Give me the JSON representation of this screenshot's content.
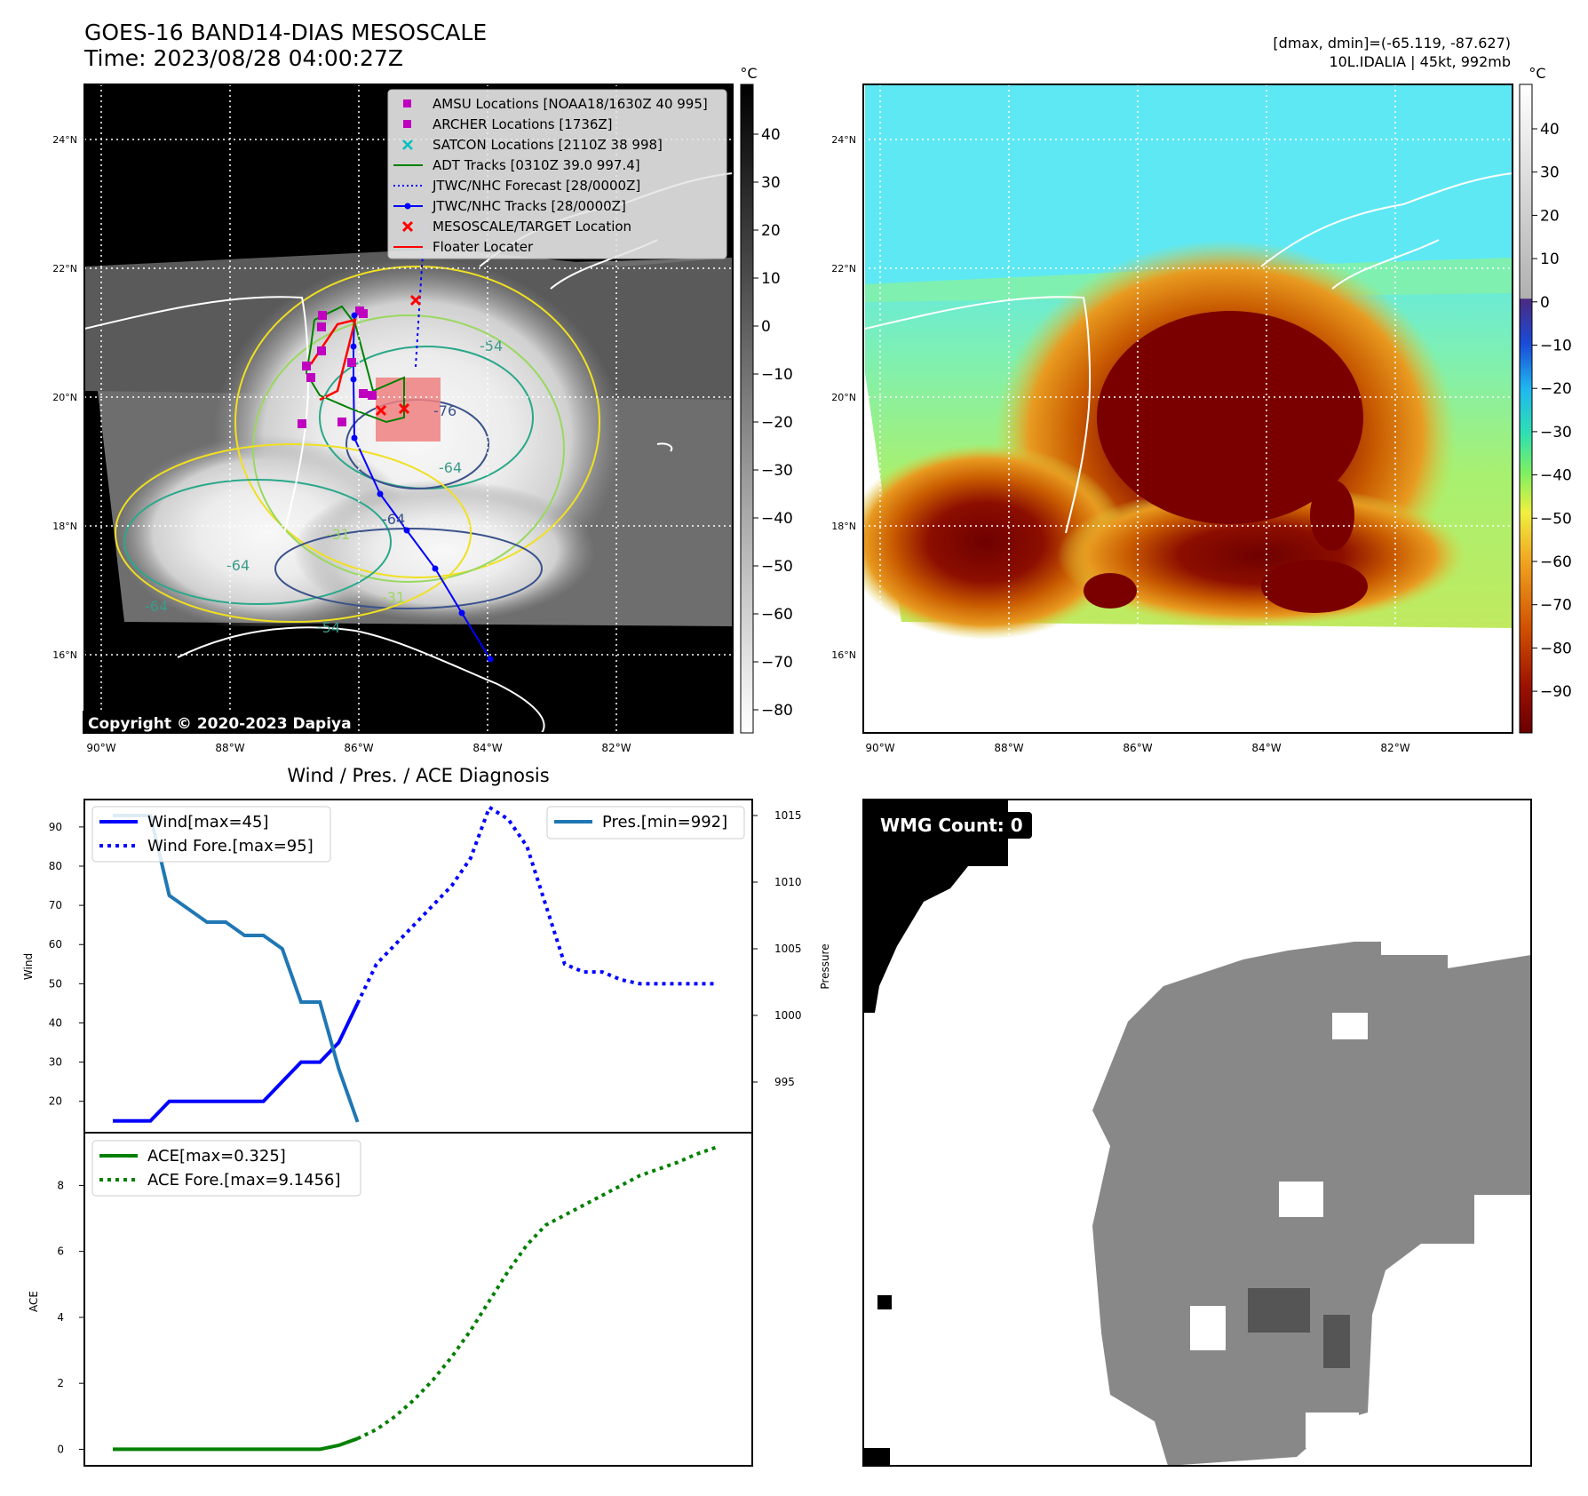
{
  "header": {
    "title_line1": "GOES-16 BAND14-DIAS MESOSCALE",
    "title_line2": "Time: 2023/08/28 04:00:27Z",
    "dmax_dmin": "[dmax, dmin]=(-65.119, -87.627)",
    "storm_info": "10L.IDALIA | 45kt, 992mb"
  },
  "map": {
    "lat_labels": [
      "24°N",
      "22°N",
      "20°N",
      "18°N",
      "16°N"
    ],
    "lon_labels": [
      "90°W",
      "88°W",
      "86°W",
      "84°W",
      "82°W"
    ],
    "copyright": "Copyright © 2020-2023 Dapiya",
    "contour_labels": [
      "-54",
      "-64",
      "-76",
      "-64",
      "-31",
      "-64",
      "-31",
      "-64",
      "-54"
    ],
    "legend": [
      {
        "label": "AMSU Locations [NOAA18/1630Z 40 995]",
        "color": "#bf00bf"
      },
      {
        "label": "ARCHER Locations [1736Z]",
        "color": "#bf00bf"
      },
      {
        "label": "SATCON Locations [2110Z 38 998]",
        "color": "#00bfbf"
      },
      {
        "label": "ADT Tracks [0310Z 39.0 997.4]",
        "color": "#008000"
      },
      {
        "label": "JTWC/NHC Forecast [28/0000Z]",
        "color": "#0000ff"
      },
      {
        "label": "JTWC/NHC Tracks [28/0000Z]",
        "color": "#0000ff"
      },
      {
        "label": "MESOSCALE/TARGET Location",
        "color": "#ff0000"
      },
      {
        "label": "Floater Locater",
        "color": "#ff0000"
      }
    ]
  },
  "colorbar_gray": {
    "unit": "°C",
    "ticks": [
      "40",
      "30",
      "20",
      "10",
      "0",
      "−10",
      "−20",
      "−30",
      "−40",
      "−50",
      "−60",
      "−70",
      "−80"
    ]
  },
  "colorbar_color": {
    "unit": "°C",
    "ticks": [
      "40",
      "30",
      "20",
      "10",
      "0",
      "−10",
      "−20",
      "−30",
      "−40",
      "−50",
      "−60",
      "−70",
      "−80",
      "−90"
    ]
  },
  "wmg": {
    "label": "WMG Count: 0"
  },
  "chart_data": [
    {
      "type": "line",
      "title": "Wind / Pres. / ACE Diagnosis",
      "ylabel": "Wind",
      "y2label": "Pressure",
      "ylim": [
        12,
        97
      ],
      "y2lim": [
        991.2,
        1016.2
      ],
      "yticks": [
        20,
        30,
        40,
        50,
        60,
        70,
        80,
        90
      ],
      "y2ticks": [
        995,
        1000,
        1005,
        1010,
        1015
      ],
      "x": [
        0,
        1,
        2,
        3,
        4,
        5,
        6,
        7,
        8,
        9,
        10,
        11,
        12,
        13,
        14,
        15,
        16,
        17,
        18,
        19,
        20,
        21,
        22,
        23,
        24,
        25,
        26,
        27,
        28,
        29,
        30,
        31,
        32
      ],
      "series": [
        {
          "name": "Wind[max=45]",
          "style": "solid",
          "color": "#0000ff",
          "axis": "left",
          "x": [
            0,
            2,
            3,
            7,
            8,
            9,
            10,
            11,
            12,
            13
          ],
          "values": [
            15,
            15,
            20,
            20,
            20,
            25,
            30,
            30,
            35,
            45
          ]
        },
        {
          "name": "Wind Fore.[max=95]",
          "style": "dotted",
          "color": "#0000ff",
          "axis": "left",
          "x": [
            13,
            14,
            15,
            16,
            17,
            18,
            19,
            20,
            21,
            22,
            23,
            24,
            25,
            26,
            27,
            28,
            29,
            30,
            31,
            32
          ],
          "values": [
            45,
            55,
            60,
            65,
            70,
            75,
            82,
            95,
            92,
            85,
            70,
            55,
            53,
            53,
            51,
            50,
            50,
            50,
            50,
            50
          ]
        },
        {
          "name": "Pres.[min=992]",
          "style": "solid",
          "color": "#1f77b4",
          "axis": "right",
          "x": [
            0,
            1,
            2,
            3,
            4,
            5,
            6,
            7,
            8,
            9,
            10,
            11,
            12,
            13
          ],
          "values": [
            1015,
            1015,
            1015,
            1009,
            1008,
            1007,
            1007,
            1006,
            1006,
            1005,
            1001,
            1001,
            996,
            992
          ]
        }
      ]
    },
    {
      "type": "line",
      "ylabel": "ACE",
      "ylim": [
        -0.5,
        9.6
      ],
      "yticks": [
        0,
        2,
        4,
        6,
        8
      ],
      "series": [
        {
          "name": "ACE[max=0.325]",
          "style": "solid",
          "color": "#008000",
          "x": [
            0,
            1,
            2,
            3,
            4,
            5,
            6,
            7,
            8,
            9,
            10,
            11,
            12,
            13
          ],
          "values": [
            0,
            0,
            0,
            0,
            0,
            0,
            0,
            0,
            0,
            0,
            0,
            0,
            0.12,
            0.325
          ]
        },
        {
          "name": "ACE Fore.[max=9.1456]",
          "style": "dotted",
          "color": "#008000",
          "x": [
            13,
            14,
            15,
            16,
            17,
            18,
            19,
            20,
            21,
            22,
            23,
            24,
            25,
            26,
            27,
            28,
            29,
            30,
            31,
            32
          ],
          "values": [
            0.325,
            0.6,
            1.0,
            1.5,
            2.1,
            2.8,
            3.6,
            4.5,
            5.4,
            6.2,
            6.8,
            7.1,
            7.4,
            7.7,
            8.0,
            8.3,
            8.5,
            8.7,
            8.95,
            9.1456
          ]
        }
      ]
    }
  ]
}
